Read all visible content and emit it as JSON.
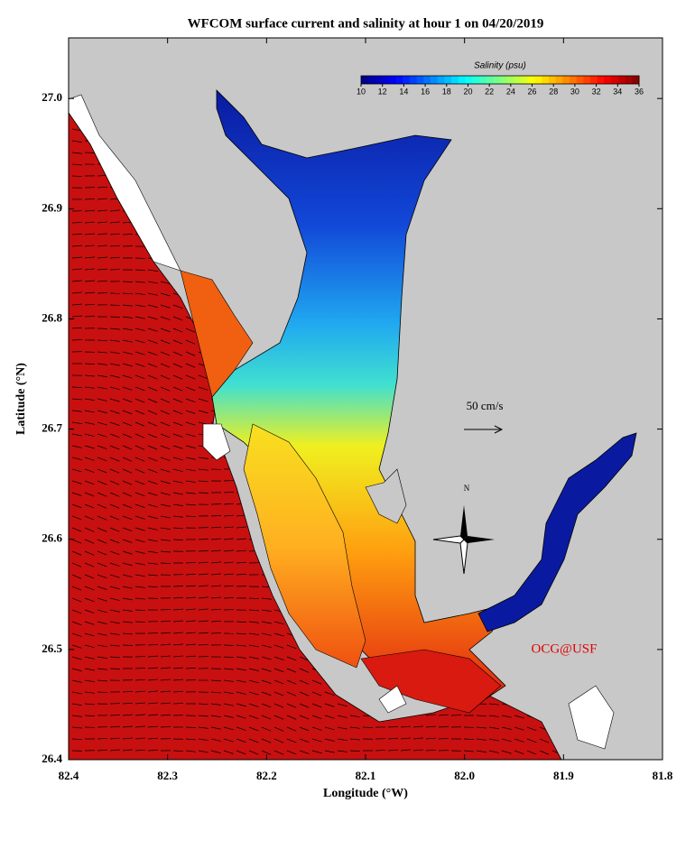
{
  "map": {
    "title": "WFCOM surface current and salinity at hour 1 on 04/20/2019",
    "x_label": "Longitude (°W)",
    "y_label": "Latitude (°N)",
    "xlim": [
      82.4,
      81.8
    ],
    "ylim": [
      26.4,
      27.055
    ],
    "xticks": [
      82.4,
      82.3,
      82.2,
      82.1,
      {
        "value": 82,
        "label": "82.0"
      },
      81.9,
      81.8
    ],
    "yticks": [
      26.4,
      26.5,
      26.6,
      26.7,
      26.8,
      26.9,
      {
        "value": 27,
        "label": "27.0"
      }
    ],
    "colorbar": {
      "label": "Salinity (psu)",
      "range": [
        10,
        36
      ],
      "ticks": [
        10,
        12,
        14,
        16,
        18,
        20,
        22,
        24,
        26,
        28,
        30,
        32,
        34,
        36
      ]
    },
    "scale_label": "50 cm/s",
    "compass": "N",
    "credit": "OCG@USF"
  }
}
